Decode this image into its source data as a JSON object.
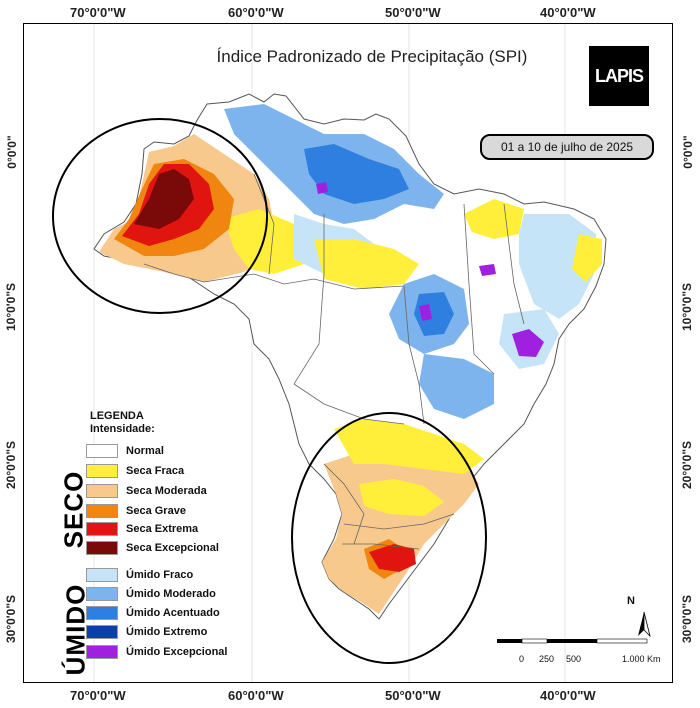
{
  "title": "Índice Padronizado de Precipitação (SPI)",
  "logo_text": "LAPIS",
  "date_range": "01 a 10 de julho de 2025",
  "axes": {
    "top_lon": [
      "70°0'0\"W",
      "60°0'0\"W",
      "50°0'0\"W",
      "40°0'0\"W"
    ],
    "bottom_lon": [
      "70°0'0\"W",
      "60°0'0\"W",
      "50°0'0\"W",
      "40°0'0\"W"
    ],
    "left_lat": [
      "0°0'0\"",
      "10°0'0\"S",
      "20°0'0\"S",
      "30°0'0\"S"
    ],
    "right_lat": [
      "0°0'0\"",
      "10°0'0\"S",
      "20°0'0\"S",
      "30°0'0\"S"
    ]
  },
  "legend": {
    "title": "LEGENDA",
    "subtitle": "Intensidade:",
    "normal": {
      "label": "Normal",
      "color": "#ffffff"
    },
    "seco_label": "SECO",
    "umido_label": "ÚMIDO",
    "seco": [
      {
        "label": "Seca Fraca",
        "color": "#ffef3a"
      },
      {
        "label": "Seca Moderada",
        "color": "#f8c98c"
      },
      {
        "label": "Seca Grave",
        "color": "#f0860f"
      },
      {
        "label": "Seca Extrema",
        "color": "#e0150f"
      },
      {
        "label": "Seca Excepcional",
        "color": "#7a0a0a"
      }
    ],
    "umido": [
      {
        "label": "Úmido Fraco",
        "color": "#c6e4f7"
      },
      {
        "label": "Úmido Moderado",
        "color": "#7eb4ee"
      },
      {
        "label": "Úmido Acentuado",
        "color": "#2f7fe0"
      },
      {
        "label": "Úmido Extremo",
        "color": "#0d3fa8"
      },
      {
        "label": "Úmido Excepcional",
        "color": "#a020e0"
      }
    ]
  },
  "north_label": "N",
  "scale": {
    "ticks": [
      "0",
      "250",
      "500",
      "1.000 Km"
    ]
  }
}
